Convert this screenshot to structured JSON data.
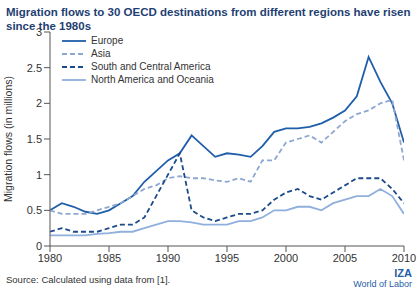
{
  "chart_data": {
    "type": "line",
    "title": "Migration flows to 30 OECD destinations from different regions have risen since the 1980s",
    "y_label": "Migration flows (in millions)",
    "source": "Source: Calculated using data from [1].",
    "annotations": [
      "IZA",
      "World of Labor"
    ],
    "x": [
      1980,
      1981,
      1982,
      1983,
      1984,
      1985,
      1986,
      1987,
      1988,
      1989,
      1990,
      1991,
      1992,
      1993,
      1994,
      1995,
      1996,
      1997,
      1998,
      1999,
      2000,
      2001,
      2002,
      2003,
      2004,
      2005,
      2006,
      2007,
      2008,
      2009,
      2010
    ],
    "series": [
      {
        "name": "Europe",
        "color": "#1f5ea8",
        "line_style": "solid",
        "values": [
          0.5,
          0.6,
          0.55,
          0.48,
          0.45,
          0.5,
          0.6,
          0.7,
          0.9,
          1.05,
          1.2,
          1.3,
          1.55,
          1.4,
          1.25,
          1.3,
          1.28,
          1.25,
          1.4,
          1.6,
          1.65,
          1.65,
          1.67,
          1.72,
          1.8,
          1.9,
          2.1,
          2.65,
          2.3,
          2.0,
          1.45
        ]
      },
      {
        "name": "Asia",
        "color": "#8ea7d1",
        "line_style": "dashed",
        "values": [
          0.5,
          0.45,
          0.45,
          0.45,
          0.5,
          0.55,
          0.6,
          0.7,
          0.8,
          0.85,
          0.95,
          0.98,
          0.95,
          0.95,
          0.92,
          0.9,
          0.95,
          0.9,
          1.2,
          1.2,
          1.45,
          1.5,
          1.55,
          1.45,
          1.6,
          1.75,
          1.85,
          1.9,
          2.0,
          2.05,
          1.2
        ]
      },
      {
        "name": "South and Central America",
        "color": "#1b4b8a",
        "line_style": "dashed",
        "values": [
          0.2,
          0.25,
          0.2,
          0.2,
          0.2,
          0.25,
          0.3,
          0.3,
          0.4,
          0.7,
          1.0,
          1.3,
          0.5,
          0.4,
          0.35,
          0.4,
          0.45,
          0.45,
          0.5,
          0.65,
          0.75,
          0.8,
          0.7,
          0.65,
          0.75,
          0.85,
          0.95,
          0.95,
          0.95,
          0.8,
          0.6
        ]
      },
      {
        "name": "North America and Oceania",
        "color": "#8fb0dc",
        "line_style": "solid",
        "values": [
          0.15,
          0.15,
          0.15,
          0.15,
          0.17,
          0.18,
          0.2,
          0.2,
          0.25,
          0.3,
          0.35,
          0.35,
          0.33,
          0.3,
          0.3,
          0.3,
          0.35,
          0.35,
          0.4,
          0.5,
          0.5,
          0.55,
          0.55,
          0.5,
          0.6,
          0.65,
          0.7,
          0.7,
          0.8,
          0.7,
          0.45
        ]
      }
    ],
    "xlim": [
      1980,
      2010
    ],
    "xticks": [
      1980,
      1985,
      1990,
      1995,
      2000,
      2005,
      2010
    ],
    "ylim": [
      0,
      3
    ],
    "yticks": [
      0,
      0.5,
      1,
      1.5,
      2,
      2.5,
      3
    ],
    "grid": false,
    "legend": "upper left"
  }
}
